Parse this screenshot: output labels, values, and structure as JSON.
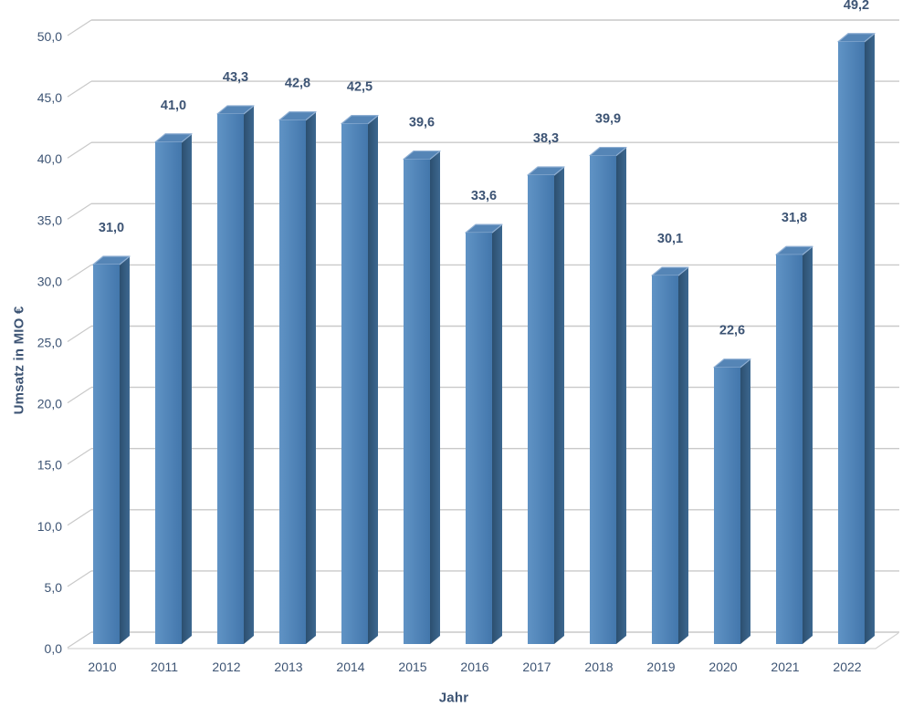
{
  "chart_data": {
    "type": "bar",
    "style": "3d-column",
    "title": "",
    "xlabel": "Jahr",
    "ylabel": "Umsatz in MIO €",
    "categories": [
      "2010",
      "2011",
      "2012",
      "2013",
      "2014",
      "2015",
      "2016",
      "2017",
      "2018",
      "2019",
      "2020",
      "2021",
      "2022"
    ],
    "values": [
      31.0,
      41.0,
      43.3,
      42.8,
      42.5,
      39.6,
      33.6,
      38.3,
      39.9,
      30.1,
      22.6,
      31.8,
      49.2
    ],
    "data_labels": [
      "31,0",
      "41,0",
      "43,3",
      "42,8",
      "42,5",
      "39,6",
      "33,6",
      "38,3",
      "39,9",
      "30,1",
      "22,6",
      "31,8",
      "49,2"
    ],
    "y_ticks": [
      "0,0",
      "5,0",
      "10,0",
      "15,0",
      "20,0",
      "25,0",
      "30,0",
      "35,0",
      "40,0",
      "45,0",
      "50,0"
    ],
    "ylim": [
      0,
      50
    ],
    "y_step": 5,
    "grid": true,
    "legend": false,
    "decimal_separator": ",",
    "colors": {
      "bar_front_light": "#6093c5",
      "bar_front_dark": "#4377ac",
      "bar_side_light": "#3d6890",
      "bar_side_dark": "#2c4f6f",
      "bar_top": "#5585b6",
      "bar_top_edge": "#8fafd3",
      "gridline": "#c9c9c9",
      "floor_edge": "#d4d4d4",
      "text": "#3d5474",
      "background": "#ffffff"
    }
  }
}
